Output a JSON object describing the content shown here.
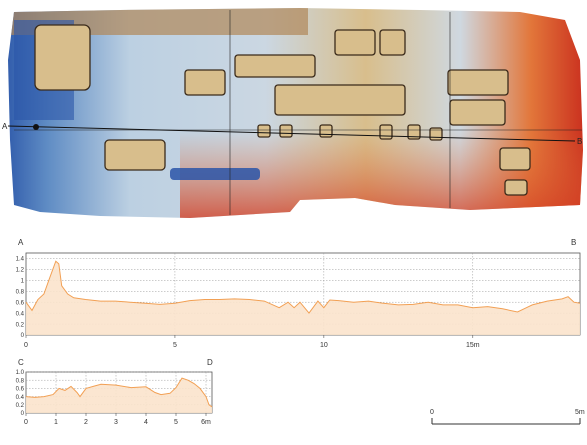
{
  "map": {
    "section_marker_a": "A",
    "section_marker_b": "B",
    "colors": {
      "deep_blue": "#2a55a8",
      "light_blue": "#bcd0e2",
      "tan": "#d8be8c",
      "orange": "#e2763a",
      "red": "#c8291c"
    }
  },
  "scalebar": {
    "left_label": "0",
    "right_label": "5m"
  },
  "chart_data": [
    {
      "type": "area",
      "corner_labels": [
        "A",
        "B"
      ],
      "x_tick_labels": [
        "0",
        "5",
        "10",
        "15m"
      ],
      "y_tick_labels": [
        "0",
        "0.2",
        "0.4",
        "0.6",
        "0.8",
        "1",
        "1.2",
        "1.4"
      ],
      "xlim": [
        0,
        18.6
      ],
      "ylim": [
        0,
        1.5
      ],
      "grid": true,
      "colors": {
        "line": "#f2a054",
        "fill": "#fbe3cc"
      },
      "x": [
        0,
        0.2,
        0.4,
        0.6,
        0.8,
        1.0,
        1.1,
        1.2,
        1.4,
        1.6,
        2.0,
        2.5,
        3.0,
        3.5,
        4.0,
        4.5,
        5.0,
        5.5,
        6.0,
        6.5,
        7.0,
        7.5,
        8.0,
        8.5,
        8.8,
        9.0,
        9.2,
        9.5,
        9.8,
        10.0,
        10.2,
        10.5,
        11.0,
        11.5,
        12.0,
        12.5,
        13.0,
        13.5,
        14.0,
        14.5,
        15.0,
        15.5,
        16.0,
        16.5,
        16.8,
        17.0,
        17.5,
        18.0,
        18.2,
        18.4,
        18.6
      ],
      "y": [
        0.6,
        0.45,
        0.65,
        0.75,
        1.05,
        1.35,
        1.3,
        0.9,
        0.75,
        0.68,
        0.65,
        0.62,
        0.62,
        0.6,
        0.58,
        0.56,
        0.58,
        0.63,
        0.65,
        0.65,
        0.66,
        0.65,
        0.62,
        0.5,
        0.6,
        0.5,
        0.6,
        0.4,
        0.62,
        0.5,
        0.64,
        0.63,
        0.6,
        0.62,
        0.58,
        0.55,
        0.56,
        0.6,
        0.55,
        0.55,
        0.5,
        0.52,
        0.48,
        0.42,
        0.5,
        0.55,
        0.62,
        0.66,
        0.7,
        0.6,
        0.58
      ]
    },
    {
      "type": "area",
      "corner_labels": [
        "C",
        "D"
      ],
      "x_tick_labels": [
        "0",
        "1",
        "2",
        "3",
        "4",
        "5",
        "6m"
      ],
      "y_tick_labels": [
        "0",
        "0.2",
        "0.4",
        "0.6",
        "0.8",
        "1.0"
      ],
      "xlim": [
        0,
        6.2
      ],
      "ylim": [
        0,
        1.0
      ],
      "grid": true,
      "colors": {
        "line": "#f2a054",
        "fill": "#fbe3cc"
      },
      "x": [
        0,
        0.3,
        0.6,
        0.9,
        1.1,
        1.3,
        1.5,
        1.7,
        1.8,
        2.0,
        2.3,
        2.5,
        3.0,
        3.5,
        4.0,
        4.3,
        4.5,
        4.8,
        5.0,
        5.2,
        5.4,
        5.6,
        5.8,
        6.0,
        6.1,
        6.2
      ],
      "y": [
        0.4,
        0.38,
        0.4,
        0.45,
        0.6,
        0.55,
        0.65,
        0.5,
        0.4,
        0.6,
        0.66,
        0.7,
        0.68,
        0.62,
        0.64,
        0.5,
        0.45,
        0.48,
        0.62,
        0.85,
        0.8,
        0.72,
        0.6,
        0.4,
        0.2,
        0.15
      ]
    }
  ]
}
